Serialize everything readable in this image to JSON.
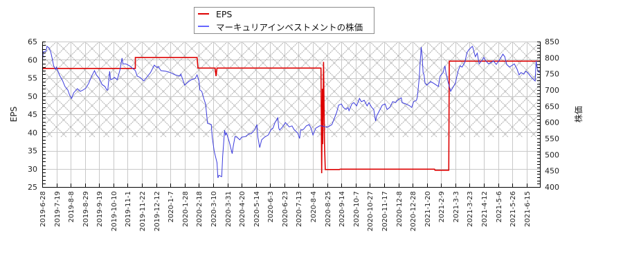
{
  "legend": {
    "items": [
      {
        "label": "EPS",
        "color": "#dd0000"
      },
      {
        "label": "マーキュリアインベストメントの株価",
        "color": "#6666ff"
      }
    ]
  },
  "chart_data": {
    "type": "line",
    "title": "",
    "xlabel": "",
    "ylabel": "EPS",
    "y2label": "株価",
    "ylim": [
      25,
      65
    ],
    "y2lim": [
      400,
      850
    ],
    "yticks": [
      25,
      30,
      35,
      40,
      45,
      50,
      55,
      60,
      65
    ],
    "y2ticks": [
      400,
      450,
      500,
      550,
      600,
      650,
      700,
      750,
      800,
      850
    ],
    "grid": true,
    "legend_position": "top-center",
    "x_index_range": [
      0,
      524
    ],
    "xticks": [
      {
        "index": 0,
        "label": "2019-6-28"
      },
      {
        "index": 15,
        "label": "2019-7-19"
      },
      {
        "index": 30,
        "label": "2019-8-8"
      },
      {
        "index": 45,
        "label": "2019-8-29"
      },
      {
        "index": 60,
        "label": "2019-9-19"
      },
      {
        "index": 75,
        "label": "2019-10-10"
      },
      {
        "index": 90,
        "label": "2019-11-1"
      },
      {
        "index": 105,
        "label": "2019-11-22"
      },
      {
        "index": 120,
        "label": "2019-12-12"
      },
      {
        "index": 135,
        "label": "2020-1-7"
      },
      {
        "index": 150,
        "label": "2020-1-28"
      },
      {
        "index": 165,
        "label": "2020-2-18"
      },
      {
        "index": 180,
        "label": "2020-3-10"
      },
      {
        "index": 195,
        "label": "2020-3-31"
      },
      {
        "index": 210,
        "label": "2020-4-20"
      },
      {
        "index": 225,
        "label": "2020-5-14"
      },
      {
        "index": 240,
        "label": "2020-6-3"
      },
      {
        "index": 255,
        "label": "2020-6-23"
      },
      {
        "index": 270,
        "label": "2020-7-13"
      },
      {
        "index": 285,
        "label": "2020-8-4"
      },
      {
        "index": 300,
        "label": "2020-8-25"
      },
      {
        "index": 315,
        "label": "2020-9-14"
      },
      {
        "index": 330,
        "label": "2020-10-7"
      },
      {
        "index": 345,
        "label": "2020-10-27"
      },
      {
        "index": 360,
        "label": "2020-11-17"
      },
      {
        "index": 375,
        "label": "2020-12-8"
      },
      {
        "index": 390,
        "label": "2020-12-28"
      },
      {
        "index": 405,
        "label": "2021-1-20"
      },
      {
        "index": 420,
        "label": "2021-2-9"
      },
      {
        "index": 435,
        "label": "2021-3-3"
      },
      {
        "index": 450,
        "label": "2021-3-23"
      },
      {
        "index": 465,
        "label": "2021-4-12"
      },
      {
        "index": 480,
        "label": "2021-5-6"
      },
      {
        "index": 495,
        "label": "2021-5-26"
      },
      {
        "index": 510,
        "label": "2021-6-15"
      }
    ],
    "shaded_band": {
      "axis": "left",
      "from": 38.7,
      "to": 65,
      "pattern": "crosshatch"
    },
    "series": [
      {
        "name": "EPS",
        "axis": "left",
        "color": "#dd0000",
        "points": [
          [
            0,
            57.6
          ],
          [
            98,
            57.6
          ],
          [
            98,
            60.6
          ],
          [
            163,
            60.6
          ],
          [
            164,
            57.7
          ],
          [
            182,
            57.7
          ],
          [
            183,
            55.5
          ],
          [
            184,
            57.7
          ],
          [
            293.5,
            57.7
          ],
          [
            294.2,
            28.8
          ],
          [
            295,
            52.0
          ],
          [
            295.3,
            36.8
          ],
          [
            296.2,
            59.4
          ],
          [
            297.2,
            36.7
          ],
          [
            298,
            29.8
          ],
          [
            313,
            29.8
          ],
          [
            313.5,
            29.9
          ],
          [
            413,
            29.9
          ],
          [
            413.5,
            29.6
          ],
          [
            428,
            29.6
          ],
          [
            428.5,
            59.6
          ],
          [
            524,
            59.6
          ]
        ]
      },
      {
        "name": "マーキュリアインベストメントの株価",
        "axis": "right",
        "color": "#3a3adc",
        "points": [
          [
            0,
            775
          ],
          [
            1,
            818
          ],
          [
            4,
            820
          ],
          [
            5,
            835
          ],
          [
            7,
            831
          ],
          [
            9,
            818
          ],
          [
            11,
            790
          ],
          [
            12,
            775
          ],
          [
            14,
            764
          ],
          [
            15,
            771
          ],
          [
            18,
            747
          ],
          [
            21,
            732
          ],
          [
            24,
            711
          ],
          [
            27,
            700
          ],
          [
            29,
            683
          ],
          [
            31,
            674
          ],
          [
            33,
            691
          ],
          [
            37,
            704
          ],
          [
            40,
            696
          ],
          [
            43,
            700
          ],
          [
            46,
            706
          ],
          [
            49,
            721
          ],
          [
            52,
            743
          ],
          [
            55,
            760
          ],
          [
            57,
            747
          ],
          [
            60,
            736
          ],
          [
            63,
            717
          ],
          [
            66,
            711
          ],
          [
            68,
            700
          ],
          [
            69,
            700
          ],
          [
            71,
            758
          ],
          [
            72,
            732
          ],
          [
            74,
            734
          ],
          [
            76,
            739
          ],
          [
            79,
            732
          ],
          [
            82,
            764
          ],
          [
            84,
            799
          ],
          [
            85,
            781
          ],
          [
            88,
            781
          ],
          [
            92,
            775
          ],
          [
            98,
            760
          ],
          [
            100,
            743
          ],
          [
            103,
            739
          ],
          [
            107,
            728
          ],
          [
            111,
            743
          ],
          [
            114,
            754
          ],
          [
            118,
            777
          ],
          [
            121,
            769
          ],
          [
            122,
            773
          ],
          [
            125,
            760
          ],
          [
            130,
            758
          ],
          [
            135,
            754
          ],
          [
            140,
            747
          ],
          [
            145,
            743
          ],
          [
            146,
            749
          ],
          [
            150,
            715
          ],
          [
            154,
            726
          ],
          [
            157,
            732
          ],
          [
            161,
            736
          ],
          [
            163,
            747
          ],
          [
            165,
            728
          ],
          [
            166,
            700
          ],
          [
            168,
            696
          ],
          [
            170,
            674
          ],
          [
            172,
            657
          ],
          [
            174,
            597
          ],
          [
            178,
            593
          ],
          [
            179,
            554
          ],
          [
            181,
            511
          ],
          [
            184,
            475
          ],
          [
            185,
            428
          ],
          [
            186,
            436
          ],
          [
            189,
            432
          ],
          [
            190,
            496
          ],
          [
            192,
            576
          ],
          [
            193,
            561
          ],
          [
            194,
            567
          ],
          [
            197,
            539
          ],
          [
            200,
            503
          ],
          [
            201,
            524
          ],
          [
            203,
            556
          ],
          [
            205,
            554
          ],
          [
            208,
            546
          ],
          [
            210,
            554
          ],
          [
            214,
            556
          ],
          [
            218,
            565
          ],
          [
            220,
            565
          ],
          [
            224,
            578
          ],
          [
            226,
            593
          ],
          [
            227,
            554
          ],
          [
            229,
            522
          ],
          [
            231,
            546
          ],
          [
            234,
            554
          ],
          [
            238,
            561
          ],
          [
            241,
            578
          ],
          [
            243,
            582
          ],
          [
            245,
            599
          ],
          [
            248,
            614
          ],
          [
            249,
            582
          ],
          [
            250,
            576
          ],
          [
            253,
            586
          ],
          [
            256,
            599
          ],
          [
            258,
            593
          ],
          [
            260,
            586
          ],
          [
            263,
            589
          ],
          [
            265,
            578
          ],
          [
            269,
            567
          ],
          [
            271,
            550
          ],
          [
            272,
            576
          ],
          [
            275,
            578
          ],
          [
            278,
            589
          ],
          [
            281,
            593
          ],
          [
            283,
            582
          ],
          [
            285,
            561
          ],
          [
            288,
            582
          ],
          [
            292,
            589
          ],
          [
            294,
            589
          ],
          [
            298,
            586
          ],
          [
            301,
            586
          ],
          [
            305,
            593
          ],
          [
            307,
            608
          ],
          [
            310,
            631
          ],
          [
            312,
            653
          ],
          [
            315,
            657
          ],
          [
            317,
            646
          ],
          [
            320,
            640
          ],
          [
            322,
            646
          ],
          [
            323,
            636
          ],
          [
            326,
            657
          ],
          [
            328,
            661
          ],
          [
            331,
            651
          ],
          [
            334,
            674
          ],
          [
            336,
            664
          ],
          [
            339,
            668
          ],
          [
            342,
            651
          ],
          [
            344,
            661
          ],
          [
            347,
            646
          ],
          [
            349,
            640
          ],
          [
            351,
            604
          ],
          [
            352,
            619
          ],
          [
            355,
            636
          ],
          [
            358,
            653
          ],
          [
            361,
            657
          ],
          [
            363,
            640
          ],
          [
            366,
            646
          ],
          [
            369,
            664
          ],
          [
            372,
            661
          ],
          [
            374,
            668
          ],
          [
            378,
            676
          ],
          [
            379,
            661
          ],
          [
            383,
            657
          ],
          [
            387,
            651
          ],
          [
            389,
            646
          ],
          [
            391,
            664
          ],
          [
            394,
            668
          ],
          [
            395,
            679
          ],
          [
            397,
            739
          ],
          [
            398,
            790
          ],
          [
            399,
            833
          ],
          [
            400,
            803
          ],
          [
            401,
            754
          ],
          [
            402,
            747
          ],
          [
            403,
            721
          ],
          [
            405,
            715
          ],
          [
            407,
            721
          ],
          [
            409,
            726
          ],
          [
            412,
            721
          ],
          [
            414,
            717
          ],
          [
            417,
            711
          ],
          [
            419,
            743
          ],
          [
            422,
            754
          ],
          [
            424,
            775
          ],
          [
            425,
            754
          ],
          [
            427,
            728
          ],
          [
            430,
            696
          ],
          [
            433,
            711
          ],
          [
            435,
            721
          ],
          [
            436,
            736
          ],
          [
            438,
            760
          ],
          [
            440,
            775
          ],
          [
            442,
            771
          ],
          [
            445,
            786
          ],
          [
            447,
            814
          ],
          [
            449,
            824
          ],
          [
            452,
            833
          ],
          [
            453,
            835
          ],
          [
            456,
            803
          ],
          [
            458,
            814
          ],
          [
            460,
            781
          ],
          [
            463,
            792
          ],
          [
            465,
            801
          ],
          [
            467,
            790
          ],
          [
            470,
            781
          ],
          [
            473,
            786
          ],
          [
            475,
            790
          ],
          [
            478,
            779
          ],
          [
            482,
            796
          ],
          [
            485,
            811
          ],
          [
            487,
            803
          ],
          [
            489,
            779
          ],
          [
            492,
            771
          ],
          [
            494,
            775
          ],
          [
            497,
            781
          ],
          [
            500,
            764
          ],
          [
            502,
            747
          ],
          [
            504,
            754
          ],
          [
            507,
            749
          ],
          [
            509,
            758
          ],
          [
            511,
            754
          ],
          [
            514,
            743
          ],
          [
            516,
            736
          ],
          [
            519,
            728
          ],
          [
            520,
            790
          ],
          [
            521,
            769
          ],
          [
            522,
            758
          ],
          [
            524,
            754
          ]
        ]
      }
    ]
  }
}
